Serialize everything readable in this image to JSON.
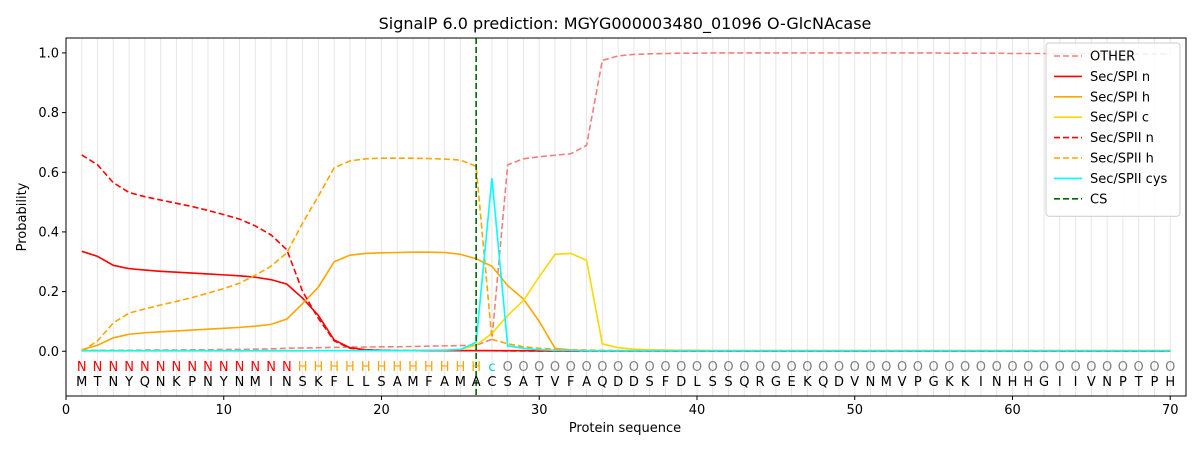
{
  "chart_data": {
    "type": "line",
    "title": "SignalP 6.0 prediction: MGYG000003480_01096 O-GlcNAcase",
    "xlabel": "Protein sequence",
    "ylabel": "Probability",
    "xlim": [
      0,
      71
    ],
    "ylim": [
      -0.15,
      1.05
    ],
    "x_ticks": [
      0,
      10,
      20,
      30,
      40,
      50,
      60,
      70
    ],
    "y_ticks": [
      0.0,
      0.2,
      0.4,
      0.6,
      0.8,
      1.0
    ],
    "grid": "vertical lines at each residue",
    "legend_position": "top-right",
    "cleavage_site": 26,
    "sequence": [
      "M",
      "T",
      "N",
      "Y",
      "Q",
      "N",
      "K",
      "P",
      "N",
      "Y",
      "N",
      "M",
      "I",
      "N",
      "S",
      "K",
      "F",
      "L",
      "L",
      "S",
      "A",
      "M",
      "F",
      "A",
      "M",
      "A",
      "C",
      "S",
      "A",
      "T",
      "V",
      "F",
      "A",
      "Q",
      "D",
      "D",
      "S",
      "F",
      "D",
      "L",
      "S",
      "S",
      "Q",
      "R",
      "G",
      "E",
      "K",
      "Q",
      "D",
      "V",
      "N",
      "M",
      "V",
      "P",
      "G",
      "K",
      "K",
      "I",
      "N",
      "H",
      "H",
      "G",
      "I",
      "I",
      "V",
      "N",
      "P",
      "T",
      "P",
      "H"
    ],
    "labels": [
      "N",
      "N",
      "N",
      "N",
      "N",
      "N",
      "N",
      "N",
      "N",
      "N",
      "N",
      "N",
      "N",
      "N",
      "H",
      "H",
      "H",
      "H",
      "H",
      "H",
      "H",
      "H",
      "H",
      "H",
      "H",
      "H",
      "c",
      "O",
      "O",
      "O",
      "O",
      "O",
      "O",
      "O",
      "O",
      "O",
      "O",
      "O",
      "O",
      "O",
      "O",
      "O",
      "O",
      "O",
      "O",
      "O",
      "O",
      "O",
      "O",
      "O",
      "O",
      "O",
      "O",
      "O",
      "O",
      "O",
      "O",
      "O",
      "O",
      "O",
      "O",
      "O",
      "O",
      "O",
      "O",
      "O",
      "O",
      "O",
      "O",
      "O"
    ],
    "label_colors": {
      "N": "#ff0000",
      "H": "#ffa500",
      "c": "#00ced1",
      "O": "#808080"
    },
    "series": [
      {
        "name": "OTHER",
        "color": "#f08080",
        "dash": true,
        "values": [
          0.003,
          0.003,
          0.003,
          0.003,
          0.004,
          0.004,
          0.004,
          0.005,
          0.005,
          0.006,
          0.006,
          0.007,
          0.008,
          0.01,
          0.011,
          0.012,
          0.013,
          0.014,
          0.014,
          0.015,
          0.015,
          0.016,
          0.017,
          0.018,
          0.019,
          0.02,
          0.04,
          0.625,
          0.645,
          0.652,
          0.657,
          0.662,
          0.69,
          0.975,
          0.99,
          0.995,
          0.997,
          0.998,
          0.999,
          0.999,
          1.0,
          1.0,
          1.0,
          1.0,
          1.0,
          1.0,
          1.0,
          1.0,
          1.0,
          1.0,
          1.0,
          1.0,
          1.0,
          1.0,
          1.0,
          0.999,
          0.999,
          0.999,
          0.999,
          0.998,
          0.998,
          0.998,
          0.997,
          0.997,
          0.997,
          0.997,
          0.997,
          0.997,
          0.996,
          0.998
        ]
      },
      {
        "name": "Sec/SPI n",
        "color": "#ff0000",
        "dash": false,
        "values": [
          0.335,
          0.318,
          0.288,
          0.277,
          0.272,
          0.268,
          0.265,
          0.262,
          0.259,
          0.256,
          0.253,
          0.248,
          0.24,
          0.225,
          0.178,
          0.12,
          0.038,
          0.012,
          0.005,
          0.003,
          0.002,
          0.002,
          0.002,
          0.002,
          0.002,
          0.002,
          0.002,
          0.002,
          0.002,
          0.001,
          0.001,
          0.001,
          0.001,
          0.001,
          0.001,
          0.001,
          0.001,
          0.001,
          0.001,
          0.001,
          0.001,
          0.001,
          0.001,
          0.001,
          0.001,
          0.001,
          0.001,
          0.001,
          0.001,
          0.001,
          0.001,
          0.001,
          0.001,
          0.001,
          0.001,
          0.001,
          0.001,
          0.001,
          0.001,
          0.001,
          0.001,
          0.001,
          0.001,
          0.001,
          0.001,
          0.001,
          0.001,
          0.001,
          0.001,
          0.001
        ]
      },
      {
        "name": "Sec/SPI h",
        "color": "#ffa500",
        "dash": false,
        "values": [
          0.005,
          0.02,
          0.045,
          0.057,
          0.062,
          0.065,
          0.068,
          0.071,
          0.074,
          0.077,
          0.08,
          0.084,
          0.09,
          0.108,
          0.16,
          0.215,
          0.3,
          0.322,
          0.328,
          0.33,
          0.331,
          0.332,
          0.332,
          0.331,
          0.325,
          0.31,
          0.285,
          0.22,
          0.175,
          0.1,
          0.01,
          0.004,
          0.002,
          0.001,
          0.001,
          0.001,
          0.001,
          0.001,
          0.001,
          0.001,
          0.001,
          0.001,
          0.001,
          0.001,
          0.001,
          0.001,
          0.001,
          0.001,
          0.001,
          0.001,
          0.001,
          0.001,
          0.001,
          0.001,
          0.001,
          0.001,
          0.001,
          0.001,
          0.001,
          0.001,
          0.001,
          0.001,
          0.001,
          0.001,
          0.001,
          0.001,
          0.001,
          0.001,
          0.001,
          0.001
        ]
      },
      {
        "name": "Sec/SPI c",
        "color": "#ffd700",
        "dash": false,
        "values": [
          0.001,
          0.001,
          0.001,
          0.001,
          0.001,
          0.001,
          0.001,
          0.001,
          0.001,
          0.001,
          0.001,
          0.001,
          0.001,
          0.001,
          0.001,
          0.002,
          0.002,
          0.002,
          0.002,
          0.002,
          0.002,
          0.003,
          0.003,
          0.004,
          0.006,
          0.02,
          0.06,
          0.12,
          0.17,
          0.25,
          0.325,
          0.328,
          0.305,
          0.025,
          0.012,
          0.007,
          0.005,
          0.004,
          0.003,
          0.003,
          0.002,
          0.002,
          0.002,
          0.002,
          0.002,
          0.002,
          0.002,
          0.002,
          0.002,
          0.002,
          0.002,
          0.002,
          0.002,
          0.002,
          0.002,
          0.002,
          0.002,
          0.002,
          0.002,
          0.002,
          0.002,
          0.002,
          0.002,
          0.002,
          0.002,
          0.002,
          0.002,
          0.002,
          0.002,
          0.002
        ]
      },
      {
        "name": "Sec/SPII n",
        "color": "#ff0000",
        "dash": true,
        "values": [
          0.658,
          0.625,
          0.565,
          0.532,
          0.518,
          0.507,
          0.496,
          0.485,
          0.472,
          0.458,
          0.443,
          0.42,
          0.39,
          0.34,
          0.2,
          0.11,
          0.035,
          0.01,
          0.005,
          0.003,
          0.002,
          0.002,
          0.002,
          0.002,
          0.002,
          0.002,
          0.002,
          0.001,
          0.001,
          0.001,
          0.001,
          0.001,
          0.001,
          0.001,
          0.001,
          0.001,
          0.001,
          0.001,
          0.001,
          0.001,
          0.001,
          0.001,
          0.001,
          0.001,
          0.001,
          0.001,
          0.001,
          0.001,
          0.001,
          0.001,
          0.001,
          0.001,
          0.001,
          0.001,
          0.001,
          0.001,
          0.001,
          0.001,
          0.001,
          0.001,
          0.001,
          0.001,
          0.001,
          0.001,
          0.001,
          0.001,
          0.001,
          0.001,
          0.001,
          0.001
        ]
      },
      {
        "name": "Sec/SPII h",
        "color": "#ffa500",
        "dash": true,
        "values": [
          0.0,
          0.035,
          0.095,
          0.128,
          0.142,
          0.155,
          0.167,
          0.18,
          0.195,
          0.21,
          0.228,
          0.255,
          0.285,
          0.33,
          0.43,
          0.52,
          0.615,
          0.638,
          0.645,
          0.647,
          0.647,
          0.647,
          0.646,
          0.644,
          0.641,
          0.62,
          0.04,
          0.025,
          0.015,
          0.01,
          0.007,
          0.005,
          0.004,
          0.003,
          0.002,
          0.002,
          0.002,
          0.002,
          0.002,
          0.002,
          0.002,
          0.002,
          0.002,
          0.002,
          0.002,
          0.002,
          0.002,
          0.002,
          0.002,
          0.002,
          0.002,
          0.002,
          0.002,
          0.002,
          0.002,
          0.002,
          0.002,
          0.002,
          0.002,
          0.002,
          0.002,
          0.002,
          0.002,
          0.002,
          0.002,
          0.002,
          0.002,
          0.002,
          0.002,
          0.002
        ]
      },
      {
        "name": "Sec/SPII cys",
        "color": "#00ffff",
        "dash": false,
        "values": [
          0.002,
          0.002,
          0.002,
          0.002,
          0.002,
          0.002,
          0.002,
          0.002,
          0.002,
          0.002,
          0.002,
          0.002,
          0.002,
          0.002,
          0.002,
          0.002,
          0.002,
          0.002,
          0.002,
          0.002,
          0.002,
          0.002,
          0.003,
          0.003,
          0.006,
          0.03,
          0.58,
          0.018,
          0.01,
          0.005,
          0.003,
          0.003,
          0.002,
          0.002,
          0.002,
          0.002,
          0.002,
          0.002,
          0.002,
          0.002,
          0.002,
          0.002,
          0.002,
          0.002,
          0.002,
          0.002,
          0.002,
          0.002,
          0.002,
          0.002,
          0.002,
          0.002,
          0.002,
          0.002,
          0.002,
          0.002,
          0.002,
          0.002,
          0.002,
          0.002,
          0.002,
          0.002,
          0.002,
          0.002,
          0.002,
          0.002,
          0.002,
          0.002,
          0.002,
          0.002
        ]
      }
    ],
    "cs_legend": {
      "name": "CS",
      "color": "#006400"
    }
  }
}
